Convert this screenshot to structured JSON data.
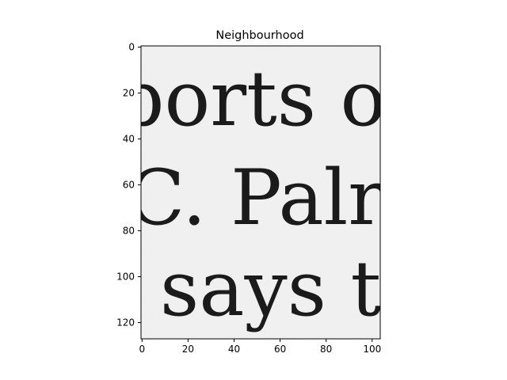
{
  "figure": {
    "title": "Neighbourhood"
  },
  "image": {
    "description_lines": [
      {
        "text": "ports of"
      },
      {
        "text": "C. Palr"
      },
      {
        "text": "says t"
      }
    ],
    "background_color": "#f2f2f2",
    "ink_color": "#1b1b1b"
  },
  "axes": {
    "x_ticks": [
      "0",
      "20",
      "40",
      "60",
      "80",
      "100"
    ],
    "y_ticks": [
      "0",
      "20",
      "40",
      "60",
      "80",
      "100",
      "120"
    ]
  }
}
